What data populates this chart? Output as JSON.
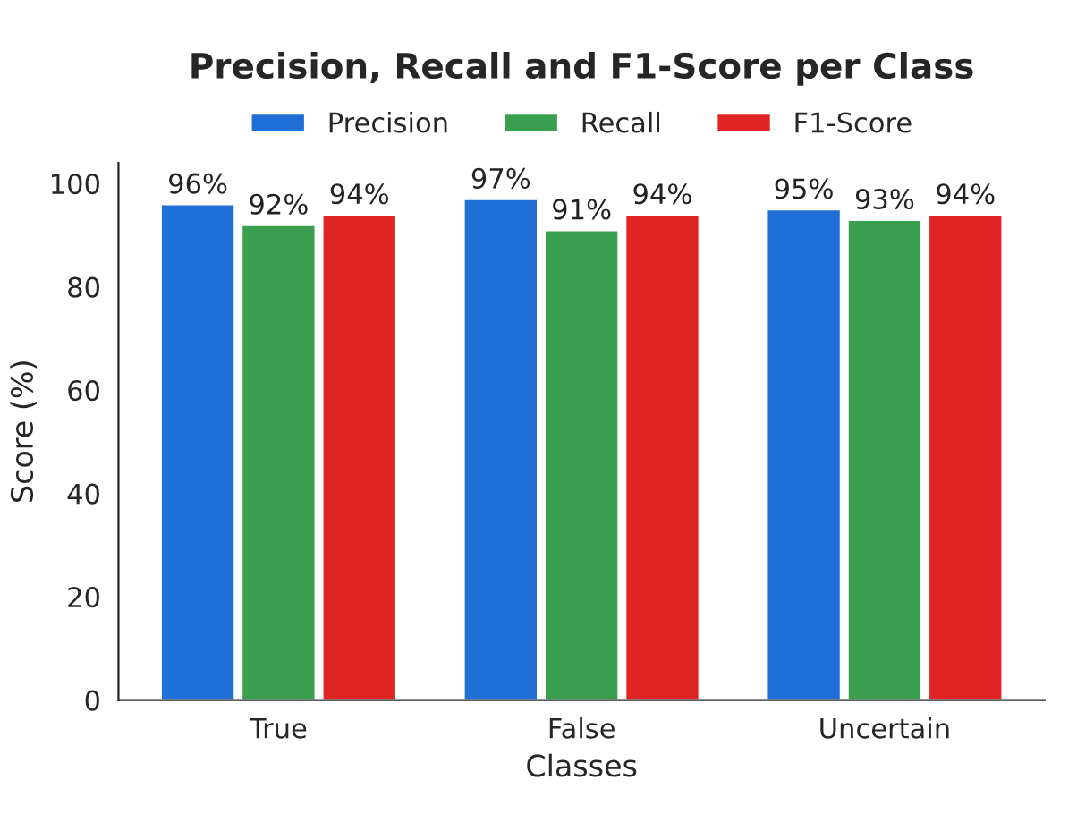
{
  "chart_data": {
    "type": "bar",
    "title": "Precision, Recall and F1-Score per Class",
    "xlabel": "Classes",
    "ylabel": "Score (%)",
    "categories": [
      "True",
      "False",
      "Uncertain"
    ],
    "series": [
      {
        "name": "Precision",
        "color": "#1f6fd6",
        "values": [
          96,
          97,
          95
        ],
        "value_labels": [
          "96%",
          "97%",
          "95%"
        ]
      },
      {
        "name": "Recall",
        "color": "#3a9e4f",
        "values": [
          92,
          91,
          93
        ],
        "value_labels": [
          "92%",
          "91%",
          "93%"
        ]
      },
      {
        "name": "F1-Score",
        "color": "#e02424",
        "values": [
          94,
          94,
          94
        ],
        "value_labels": [
          "94%",
          "94%",
          "94%"
        ]
      }
    ],
    "ylim": [
      0,
      104
    ],
    "yticks": [
      0,
      20,
      40,
      60,
      80,
      100
    ],
    "legend": "top",
    "grid": false
  }
}
